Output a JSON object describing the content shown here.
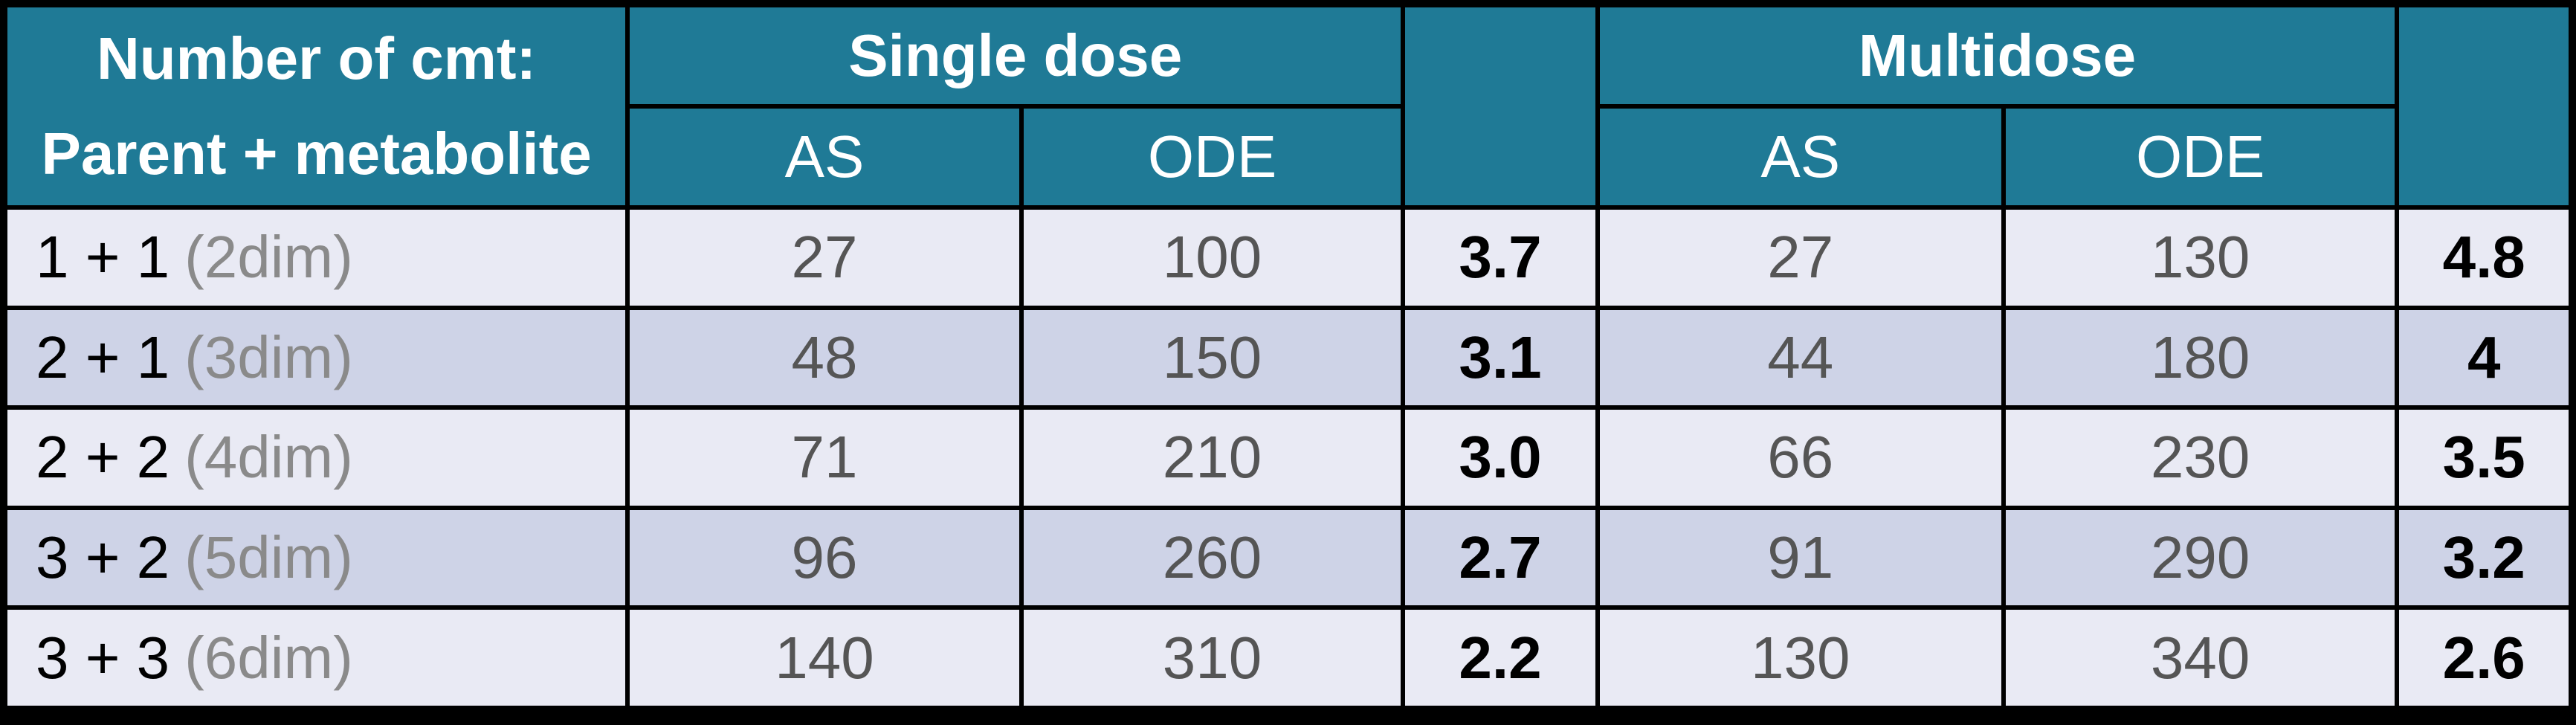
{
  "table": {
    "title_header": {
      "line1": "Number of cmt:",
      "line2": "Parent + metabolite"
    },
    "groups": {
      "single": "Single dose",
      "multi": "Multidose"
    },
    "subheaders": {
      "single_as": "AS",
      "single_ode": "ODE",
      "multi_as": "AS",
      "multi_ode": "ODE"
    },
    "rows": [
      {
        "label": "1 + 1",
        "note": "(2dim)",
        "single_as": "27",
        "single_ode": "100",
        "single_ratio": "3.7",
        "multi_as": "27",
        "multi_ode": "130",
        "multi_ratio": "4.8"
      },
      {
        "label": "2 + 1",
        "note": "(3dim)",
        "single_as": "48",
        "single_ode": "150",
        "single_ratio": "3.1",
        "multi_as": "44",
        "multi_ode": "180",
        "multi_ratio": "4"
      },
      {
        "label": "2 + 2",
        "note": "(4dim)",
        "single_as": "71",
        "single_ode": "210",
        "single_ratio": "3.0",
        "multi_as": "66",
        "multi_ode": "230",
        "multi_ratio": "3.5"
      },
      {
        "label": "3 + 2",
        "note": "(5dim)",
        "single_as": "96",
        "single_ode": "260",
        "single_ratio": "2.7",
        "multi_as": "91",
        "multi_ode": "290",
        "multi_ratio": "3.2"
      },
      {
        "label": "3 + 3",
        "note": "(6dim)",
        "single_as": "140",
        "single_ode": "310",
        "single_ratio": "2.2",
        "multi_as": "130",
        "multi_ode": "340",
        "multi_ratio": "2.6"
      }
    ],
    "colors": {
      "header_teal": "#1F7A96",
      "row_light": "#E9EAF4",
      "row_dark": "#CED3E7",
      "ratio_text": "#000000",
      "data_text": "#555555",
      "note_text": "#8A8A8A",
      "grid_lines": "#FFFFFF",
      "frame": "#000000"
    }
  }
}
